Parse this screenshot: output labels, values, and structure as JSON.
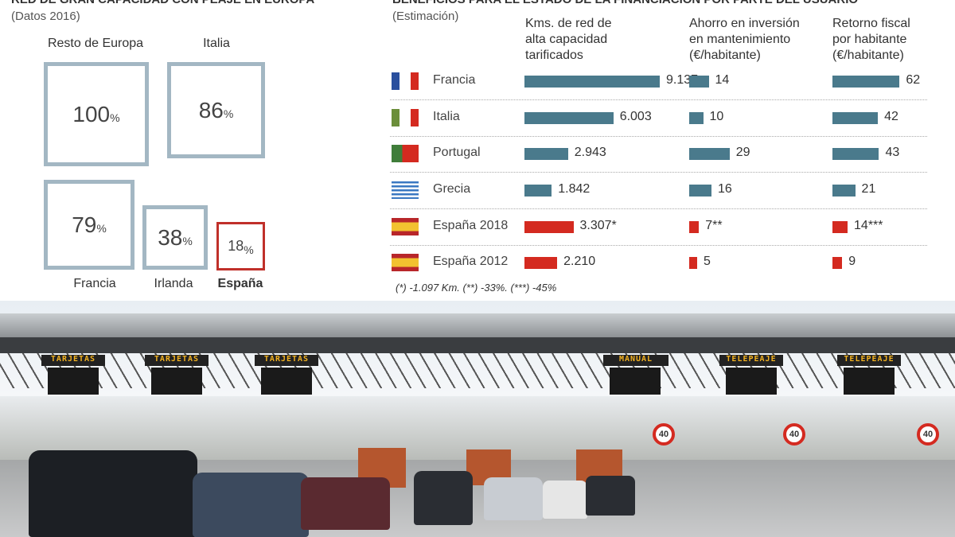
{
  "chart_data": [
    {
      "type": "table",
      "title": "RED DE GRAN CAPACIDAD CON PEAJE EN EUROPA",
      "subtitle": "(Datos 2016)",
      "categories": [
        "Resto de Europa",
        "Italia",
        "Francia",
        "Irlanda",
        "España"
      ],
      "values": [
        100,
        86,
        79,
        38,
        18
      ],
      "unit": "%",
      "highlight_color": "#c0302a",
      "color": "#a3b7c3"
    },
    {
      "type": "bar",
      "title": "BENEFICIOS PARA EL ESTADO DE LA FINANCIACIÓN POR PARTE DEL USUARIO",
      "subtitle": "(Estimación)",
      "columns": [
        "Kms. de red de alta capacidad tarificados",
        "Ahorro en inversión en mantenimiento (€/habitante)",
        "Retorno fiscal por habitante (€/habitante)"
      ],
      "rows": [
        {
          "country": "Francia",
          "flag": "france-flag",
          "values": [
            9137,
            14,
            62
          ],
          "labels": [
            "9.137",
            "14",
            "62"
          ],
          "color": "#4a7a8c"
        },
        {
          "country": "Italia",
          "flag": "italy-flag",
          "values": [
            6003,
            10,
            42
          ],
          "labels": [
            "6.003",
            "10",
            "42"
          ],
          "color": "#4a7a8c"
        },
        {
          "country": "Portugal",
          "flag": "portugal-flag",
          "values": [
            2943,
            29,
            43
          ],
          "labels": [
            "2.943",
            "29",
            "43"
          ],
          "color": "#4a7a8c"
        },
        {
          "country": "Grecia",
          "flag": "greece-flag",
          "values": [
            1842,
            16,
            21
          ],
          "labels": [
            "1.842",
            "16",
            "21"
          ],
          "color": "#4a7a8c"
        },
        {
          "country": "España 2018",
          "flag": "spain-flag",
          "values": [
            3307,
            7,
            14
          ],
          "labels": [
            "3.307*",
            "7**",
            "14***"
          ],
          "color": "#d42a20"
        },
        {
          "country": "España 2012",
          "flag": "spain-flag",
          "values": [
            2210,
            5,
            9
          ],
          "labels": [
            "2.210",
            "5",
            "9"
          ],
          "color": "#d42a20"
        }
      ],
      "note": "(*) -1.097 Km. (**) -33%. (***) -45%"
    }
  ],
  "photo": {
    "signs": [
      "TARJETAS",
      "TARJETAS",
      "TARJETAS",
      "MANUAL",
      "TELEPEAJE",
      "TELEPEAJE"
    ],
    "speed": "40"
  }
}
